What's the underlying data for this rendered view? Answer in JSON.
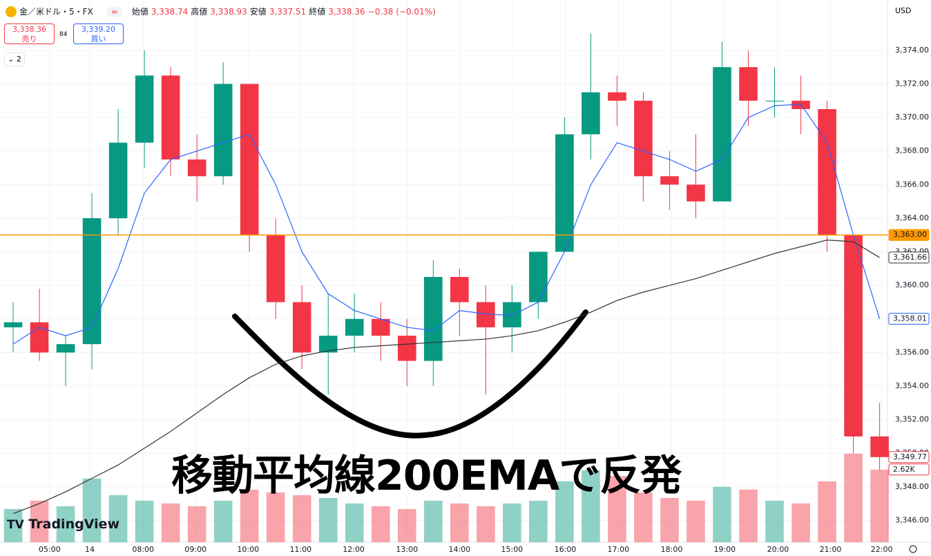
{
  "chart_data": {
    "type": "candlestick",
    "symbol": "金／米ドル・5・FX",
    "ohlc_header": {
      "open_label": "始値",
      "open": "3,338.74",
      "high_label": "高値",
      "high": "3,338.93",
      "low_label": "安値",
      "low": "3,337.51",
      "close_label": "終値",
      "close": "3,338.36",
      "change": "−0.38 (−0.01%)"
    },
    "sell": {
      "price": "3,338.36",
      "label": "売り"
    },
    "spread": "84",
    "buy": {
      "price": "3,339.20",
      "label": "買い"
    },
    "indicator_count": "2",
    "currency": "USD",
    "annotation": "移動平均線200EMAで反発",
    "logo": "TradingView",
    "up_color": "#089981",
    "down_color": "#f23645",
    "open": [
      3357.5,
      3357.8,
      3356,
      3356.5,
      3364,
      3368.5,
      3372.5,
      3367.5,
      3366.5,
      3372,
      3363,
      3359,
      3356,
      3357,
      3358,
      3357,
      3355.5,
      3360.5,
      3359,
      3357.5,
      3359,
      3362,
      3369,
      3371.5,
      3371,
      3366.5,
      3366,
      3365,
      3373,
      3371,
      3371,
      3370.5,
      3363,
      3351
    ],
    "high": [
      3359,
      3359.8,
      3357,
      3365.5,
      3370.5,
      3374,
      3373,
      3369,
      3373.3,
      3372,
      3364,
      3360,
      3359.5,
      3359.5,
      3359,
      3358,
      3361.5,
      3361,
      3360,
      3360,
      3362,
      3370,
      3375,
      3372.5,
      3371.5,
      3368,
      3369,
      3374.5,
      3374,
      3373,
      3372.5,
      3371,
      3363,
      3353
    ],
    "low": [
      3356,
      3355.5,
      3354,
      3355,
      3363,
      3367,
      3366.5,
      3365,
      3366,
      3362,
      3358,
      3355,
      3353.5,
      3356,
      3355.5,
      3354,
      3354,
      3357,
      3353.5,
      3356,
      3358,
      3362,
      3367.5,
      3369.5,
      3365,
      3364.5,
      3364,
      3365,
      3369.5,
      3370,
      3369,
      3362,
      3350,
      3349
    ],
    "close": [
      3357.8,
      3356,
      3356.5,
      3364,
      3368.5,
      3372.5,
      3367.5,
      3366.5,
      3372,
      3363,
      3359,
      3356,
      3357,
      3358,
      3357,
      3355.5,
      3360.5,
      3359,
      3357.5,
      3359,
      3362,
      3369,
      3371.5,
      3371,
      3366.5,
      3366,
      3365,
      3373,
      3371,
      3371,
      3370.5,
      3363,
      3351,
      3349.77
    ],
    "volume": [
      1200,
      1500,
      1300,
      2300,
      1700,
      1500,
      1400,
      1300,
      1500,
      1900,
      1800,
      1700,
      1600,
      1400,
      1300,
      1200,
      1500,
      1400,
      1300,
      1400,
      1500,
      2200,
      2600,
      2400,
      1800,
      1600,
      1500,
      2000,
      1900,
      1500,
      1400,
      2200,
      3200,
      2620
    ],
    "close_tag": "3,349.77",
    "volume_tag": "2.62K",
    "volume_lim": [
      0,
      19600
    ],
    "series": [
      {
        "color": "#2962ff",
        "tag": "3,358.01",
        "values": [
          3356.5,
          3357.5,
          3357,
          3357.5,
          3361,
          3365.5,
          3367.5,
          3368,
          3368.5,
          3369,
          3366,
          3362,
          3359.5,
          3358.5,
          3358,
          3357.5,
          3357.3,
          3358.5,
          3358.3,
          3358.2,
          3359,
          3362,
          3366,
          3368.5,
          3368,
          3367.5,
          3366.8,
          3367.5,
          3370,
          3370.7,
          3370.8,
          3368.5,
          3363,
          3358.01
        ]
      },
      {
        "color": "#333333",
        "tag": "3,361.66",
        "values": [
          3346.4,
          3347,
          3347.7,
          3348.5,
          3349.3,
          3350.3,
          3351.3,
          3352.4,
          3353.5,
          3354.5,
          3355.3,
          3355.8,
          3356.1,
          3356.3,
          3356.4,
          3356.5,
          3356.6,
          3356.7,
          3356.8,
          3357,
          3357.3,
          3357.8,
          3358.4,
          3359.1,
          3359.6,
          3360,
          3360.4,
          3360.9,
          3361.4,
          3361.9,
          3362.3,
          3362.7,
          3362.6,
          3361.66
        ]
      }
    ],
    "hline": {
      "value": 3363,
      "label": "3,363.00",
      "color": "#ff9800"
    },
    "xlim": [
      -0.5,
      33.3
    ],
    "xticks": [
      {
        "value": 1.39,
        "label": "05:00"
      },
      {
        "value": 2.92,
        "label": "14"
      },
      {
        "value": 4.95,
        "label": "08:00"
      },
      {
        "value": 6.95,
        "label": "09:00"
      },
      {
        "value": 8.95,
        "label": "10:00"
      },
      {
        "value": 10.95,
        "label": "11:00"
      },
      {
        "value": 12.97,
        "label": "12:00"
      },
      {
        "value": 15,
        "label": "13:00"
      },
      {
        "value": 17,
        "label": "14:00"
      },
      {
        "value": 19,
        "label": "15:00"
      },
      {
        "value": 21.03,
        "label": "16:00"
      },
      {
        "value": 23.05,
        "label": "17:00"
      },
      {
        "value": 25.08,
        "label": "18:00"
      },
      {
        "value": 27.1,
        "label": "19:00"
      },
      {
        "value": 29.13,
        "label": "20:00"
      },
      {
        "value": 31.13,
        "label": "21:00"
      },
      {
        "value": 33.08,
        "label": "22:00"
      }
    ],
    "ylim": [
      3344.7,
      3377
    ],
    "yticks": [
      {
        "value": 3346,
        "label": "3,346.00"
      },
      {
        "value": 3348,
        "label": "3,348.00"
      },
      {
        "value": 3350,
        "label": "3,350.00"
      },
      {
        "value": 3352,
        "label": "3,352.00"
      },
      {
        "value": 3354,
        "label": "3,354.00"
      },
      {
        "value": 3356,
        "label": "3,356.00"
      },
      {
        "value": 3358,
        "label": "3,358.00"
      },
      {
        "value": 3360,
        "label": "3,360.00"
      },
      {
        "value": 3362,
        "label": "3,362.00"
      },
      {
        "value": 3364,
        "label": "3,364.00"
      },
      {
        "value": 3366,
        "label": "3,366.00"
      },
      {
        "value": 3368,
        "label": "3,368.00"
      },
      {
        "value": 3370,
        "label": "3,370.00"
      },
      {
        "value": 3372,
        "label": "3,372.00"
      },
      {
        "value": 3374,
        "label": "3,374.00"
      }
    ],
    "grid": true
  }
}
